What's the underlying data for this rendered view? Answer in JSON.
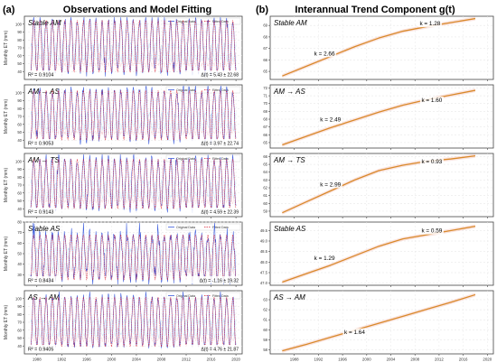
{
  "figure": {
    "left_panel_letter": "(a)",
    "left_title": "Observations and Model Fitting",
    "right_panel_letter": "(b)",
    "right_title": "Interannual Trend Component g(t)"
  },
  "left_axis": {
    "ylabel": "Monthly ET (mm)",
    "x_ticks": [
      "1988",
      "1992",
      "1996",
      "2000",
      "2004",
      "2008",
      "2012",
      "2016",
      "2020"
    ],
    "legend": [
      "Original Data",
      "Fitted Data"
    ]
  },
  "right_axis": {
    "x_ticks": [
      "1988",
      "1992",
      "1996",
      "2000",
      "2004",
      "2008",
      "2012",
      "2016",
      "2020"
    ]
  },
  "chart_data": [
    {
      "type": "line",
      "panel": "left",
      "label": "Stable AM",
      "r2_text": "R² = 0.9104",
      "delta_text": "Δ(t) = 5.43 ± 22.68",
      "ylim": [
        30,
        110
      ],
      "y_ticks": [
        "40",
        "50",
        "60",
        "70",
        "80",
        "90",
        "100"
      ],
      "season": {
        "base": 47,
        "amp": 58,
        "noise": 6,
        "dip": 8
      },
      "xlim": [
        1986,
        2021
      ]
    },
    {
      "type": "line",
      "panel": "left",
      "label": "AM → AS",
      "r2_text": "R² = 0.9053",
      "delta_text": "Δ(t) = 3.97 ± 22.74",
      "ylim": [
        30,
        110
      ],
      "y_ticks": [
        "40",
        "50",
        "60",
        "70",
        "80",
        "90",
        "100"
      ],
      "season": {
        "base": 48,
        "amp": 55,
        "noise": 6,
        "dip": 8
      },
      "xlim": [
        1986,
        2021
      ]
    },
    {
      "type": "line",
      "panel": "left",
      "label": "AM → TS",
      "r2_text": "R² = 0.9143",
      "delta_text": "Δ(t) = 4.59 ± 22.39",
      "ylim": [
        30,
        110
      ],
      "y_ticks": [
        "40",
        "50",
        "60",
        "70",
        "80",
        "90",
        "100"
      ],
      "season": {
        "base": 48,
        "amp": 55,
        "noise": 6,
        "dip": 8
      },
      "xlim": [
        1986,
        2021
      ]
    },
    {
      "type": "line",
      "panel": "left",
      "label": "Stable AS",
      "r2_text": "R² = 0.8434",
      "delta_text": "Δ(t) = -1.16 ± 19.32",
      "ylim": [
        20,
        80
      ],
      "y_ticks": [
        "30",
        "40",
        "50",
        "60",
        "70",
        "80"
      ],
      "season": {
        "base": 35,
        "amp": 33,
        "noise": 6,
        "dip": 10
      },
      "xlim": [
        1986,
        2021
      ]
    },
    {
      "type": "line",
      "panel": "left",
      "label": "AS → AM",
      "r2_text": "R² = 0.9405",
      "delta_text": "Δ(t) = 4.76 ± 21.87",
      "ylim": [
        30,
        110
      ],
      "y_ticks": [
        "40",
        "50",
        "60",
        "70",
        "80",
        "90",
        "100"
      ],
      "season": {
        "base": 46,
        "amp": 56,
        "noise": 5,
        "dip": 7
      },
      "xlim": [
        1986,
        2021
      ]
    },
    {
      "type": "line",
      "panel": "right",
      "label": "Stable AM",
      "k_labels": [
        {
          "text": "k = 2.66",
          "x": 1993,
          "y": 66.4
        },
        {
          "text": "k = 1.28",
          "x": 2010.5,
          "y": 69.0
        }
      ],
      "ylim": [
        64.3,
        69.8
      ],
      "y_ticks": [
        "65",
        "66",
        "67",
        "68",
        "69"
      ],
      "x": [
        1986,
        1990,
        1994,
        1998,
        2002,
        2006,
        2010,
        2014,
        2018
      ],
      "y": [
        64.6,
        65.45,
        66.3,
        67.15,
        67.9,
        68.5,
        68.9,
        69.25,
        69.6
      ],
      "xlim": [
        1984,
        2021
      ]
    },
    {
      "type": "line",
      "panel": "right",
      "label": "AM → AS",
      "k_labels": [
        {
          "text": "k = 2.49",
          "x": 1994,
          "y": 67.7
        },
        {
          "text": "k = 1.60",
          "x": 2010.8,
          "y": 70.2
        }
      ],
      "ylim": [
        64.3,
        72.4
      ],
      "y_ticks": [
        "65",
        "66",
        "67",
        "68",
        "69",
        "70",
        "71",
        "72"
      ],
      "x": [
        1986,
        1990,
        1994,
        1998,
        2002,
        2006,
        2010,
        2014,
        2018
      ],
      "y": [
        64.7,
        65.8,
        66.9,
        67.9,
        68.9,
        69.8,
        70.5,
        71.1,
        71.7
      ],
      "xlim": [
        1984,
        2021
      ]
    },
    {
      "type": "line",
      "panel": "right",
      "label": "AM → TS",
      "k_labels": [
        {
          "text": "k = 2.99",
          "x": 1994,
          "y": 62.2
        },
        {
          "text": "k = 0.93",
          "x": 2010.8,
          "y": 65.1
        }
      ],
      "ylim": [
        58.3,
        66.4
      ],
      "y_ticks": [
        "59",
        "60",
        "61",
        "62",
        "63",
        "64",
        "65",
        "66"
      ],
      "x": [
        1986,
        1990,
        1994,
        1998,
        2002,
        2006,
        2010,
        2014,
        2018
      ],
      "y": [
        58.8,
        60.2,
        61.6,
        63.0,
        64.2,
        64.9,
        65.4,
        65.7,
        66.1
      ],
      "xlim": [
        1984,
        2021
      ]
    },
    {
      "type": "line",
      "panel": "right",
      "label": "Stable AS",
      "k_labels": [
        {
          "text": "k = 1.29",
          "x": 1993,
          "y": 48.1
        },
        {
          "text": "k = 0.59",
          "x": 2010.8,
          "y": 49.4
        }
      ],
      "ylim": [
        46.9,
        49.9
      ],
      "y_ticks": [
        "47.0",
        "47.5",
        "48.0",
        "48.5",
        "49.0",
        "49.5"
      ],
      "x": [
        1986,
        1990,
        1994,
        1998,
        2002,
        2006,
        2010,
        2014,
        2018
      ],
      "y": [
        47.05,
        47.45,
        47.85,
        48.3,
        48.75,
        49.1,
        49.3,
        49.5,
        49.7
      ],
      "xlim": [
        1984,
        2021
      ]
    },
    {
      "type": "line",
      "panel": "right",
      "label": "AS → AM",
      "k_labels": [
        {
          "text": "k = 1.64",
          "x": 1998,
          "y": 59.6
        }
      ],
      "ylim": [
        57.6,
        63.9
      ],
      "y_ticks": [
        "58",
        "59",
        "60",
        "61",
        "62",
        "63"
      ],
      "x": [
        1986,
        1990,
        1994,
        1998,
        2002,
        2006,
        2010,
        2014,
        2018
      ],
      "y": [
        57.9,
        58.55,
        59.25,
        59.95,
        60.65,
        61.35,
        62.05,
        62.75,
        63.5
      ],
      "xlim": [
        1984,
        2021
      ]
    }
  ]
}
